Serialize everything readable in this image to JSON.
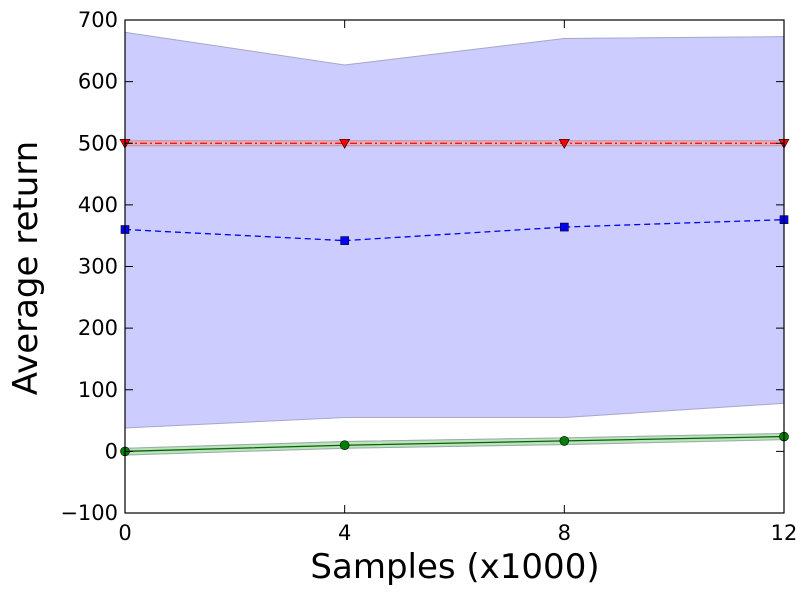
{
  "chart_data": {
    "type": "line",
    "title": "",
    "xlabel": "Samples (x1000)",
    "ylabel": "Average return",
    "x": [
      0,
      4,
      8,
      12
    ],
    "xlim": [
      0,
      12
    ],
    "ylim": [
      -100,
      700
    ],
    "xticks": [
      "0",
      "4",
      "8",
      "12"
    ],
    "yticks": [
      "−100",
      "0",
      "100",
      "200",
      "300",
      "400",
      "500",
      "600",
      "700"
    ],
    "grid": false,
    "legend": "none",
    "series": [
      {
        "values": [
          360,
          342,
          364,
          376
        ],
        "band_low": [
          38,
          55,
          55,
          78
        ],
        "band_high": [
          680,
          627,
          670,
          673
        ],
        "color": "#0000ff",
        "band_color": "#ccccff",
        "line_style": "dashed",
        "marker": "square"
      },
      {
        "values": [
          500,
          500,
          500,
          500
        ],
        "band_low": [
          496,
          496,
          496,
          496
        ],
        "band_high": [
          504,
          504,
          504,
          504
        ],
        "color": "#ff0000",
        "band_color": "#f4a6a6",
        "line_style": "dashdot",
        "marker": "triangle-down"
      },
      {
        "values": [
          0,
          10,
          17,
          24
        ],
        "band_low": [
          -6,
          5,
          11,
          19
        ],
        "band_high": [
          5,
          16,
          22,
          29
        ],
        "color": "#006400",
        "band_color": "#a8d8a8",
        "marker_color": "#008000",
        "line_style": "solid",
        "marker": "circle"
      }
    ]
  }
}
